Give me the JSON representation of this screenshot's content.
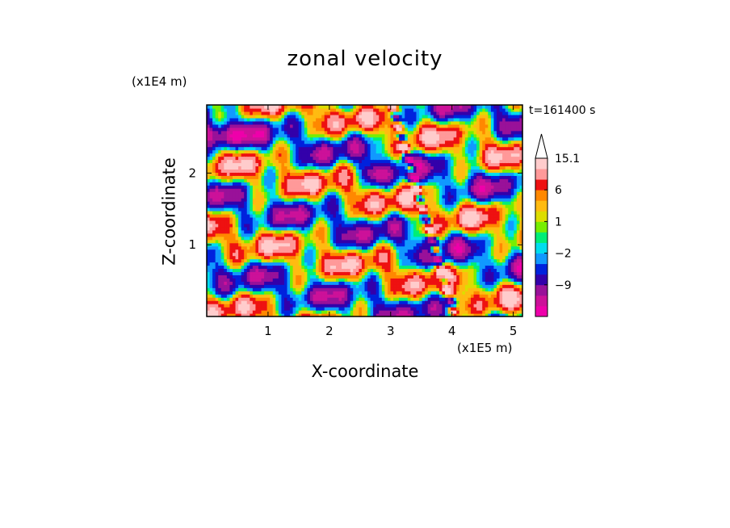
{
  "chart_data": {
    "type": "heatmap",
    "title": "zonal velocity",
    "xlabel": "X-coordinate",
    "ylabel": "Z-coordinate",
    "x_unit": "(x1E5 m)",
    "y_unit": "(x1E4 m)",
    "time_label": "t=161400 s",
    "xlim": [
      0,
      5.15
    ],
    "ylim": [
      0,
      2.95
    ],
    "x_ticks": [
      1,
      2,
      3,
      4,
      5
    ],
    "y_ticks": [
      1,
      2
    ],
    "colorbar": {
      "levels": [
        -15,
        -12,
        -9,
        -6,
        -4,
        -2,
        -1,
        0,
        1,
        2,
        4,
        6,
        9,
        12,
        15.1
      ],
      "colors": [
        "#ee00aa",
        "#cc1199",
        "#991199",
        "#3300aa",
        "#0022dd",
        "#1199ff",
        "#00ddee",
        "#00ee77",
        "#77ee00",
        "#dddd00",
        "#ffbb11",
        "#ff8800",
        "#ee1111",
        "#ff9999",
        "#ffcccc"
      ],
      "labeled_values": [
        "15.1",
        "6",
        "1",
        "-2",
        "-9"
      ],
      "extend_top": true
    },
    "field_description": "banded zonal velocity field with a narrow steep feature near x=3.6"
  }
}
